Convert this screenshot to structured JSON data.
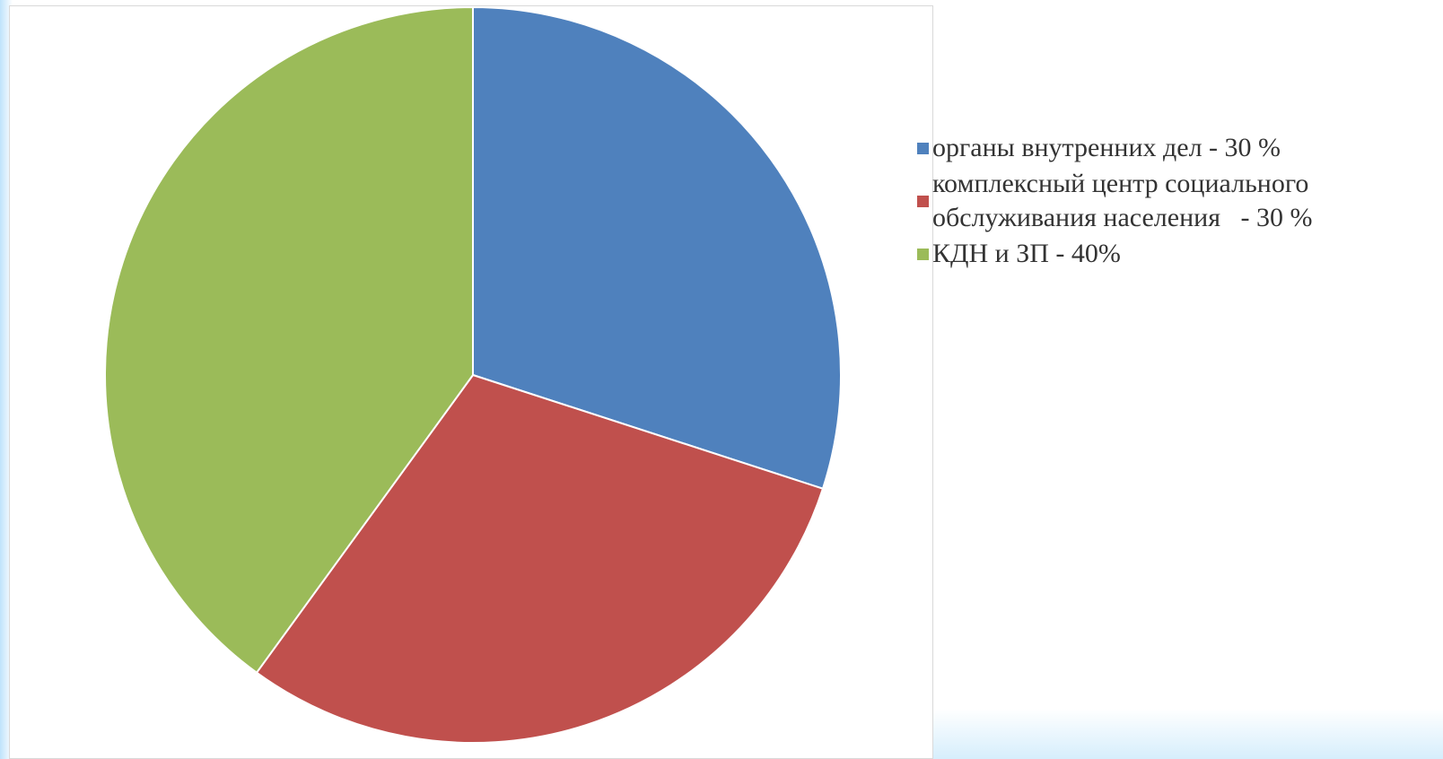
{
  "chart_data": {
    "type": "pie",
    "categories": [
      "органы внутренних дел - 30 %",
      "комплексный центр социального обслуживания населения   - 30 %",
      "КДН и ЗП - 40%"
    ],
    "values": [
      30,
      30,
      40
    ],
    "colors": [
      "#4f81bd",
      "#c0504d",
      "#9bbb59"
    ],
    "legend": "right"
  }
}
